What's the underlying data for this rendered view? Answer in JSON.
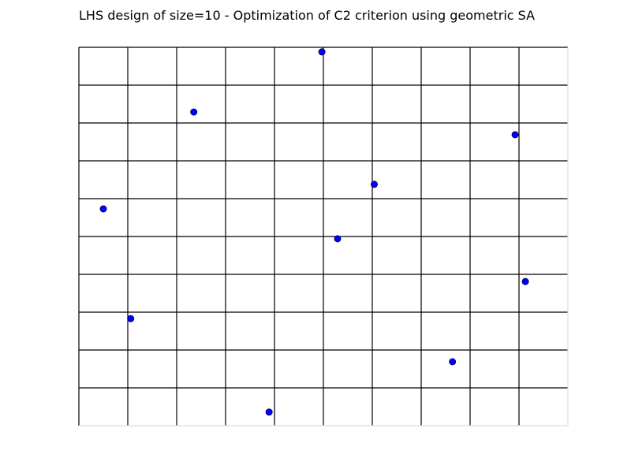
{
  "chart_data": {
    "type": "scatter",
    "title": "LHS design of size=10 - Optimization of C2 criterion using geometric SA",
    "xlim": [
      0,
      1
    ],
    "ylim": [
      0,
      1
    ],
    "grid": true,
    "grid_divisions": 10,
    "marker_color": "#0000ff",
    "marker_edge_color": "#00007a",
    "grid_color": "#000000",
    "points": [
      {
        "x": 0.497,
        "y": 0.988
      },
      {
        "x": 0.235,
        "y": 0.829
      },
      {
        "x": 0.892,
        "y": 0.769
      },
      {
        "x": 0.604,
        "y": 0.638
      },
      {
        "x": 0.05,
        "y": 0.573
      },
      {
        "x": 0.529,
        "y": 0.494
      },
      {
        "x": 0.913,
        "y": 0.381
      },
      {
        "x": 0.106,
        "y": 0.283
      },
      {
        "x": 0.764,
        "y": 0.169
      },
      {
        "x": 0.389,
        "y": 0.036
      }
    ]
  }
}
